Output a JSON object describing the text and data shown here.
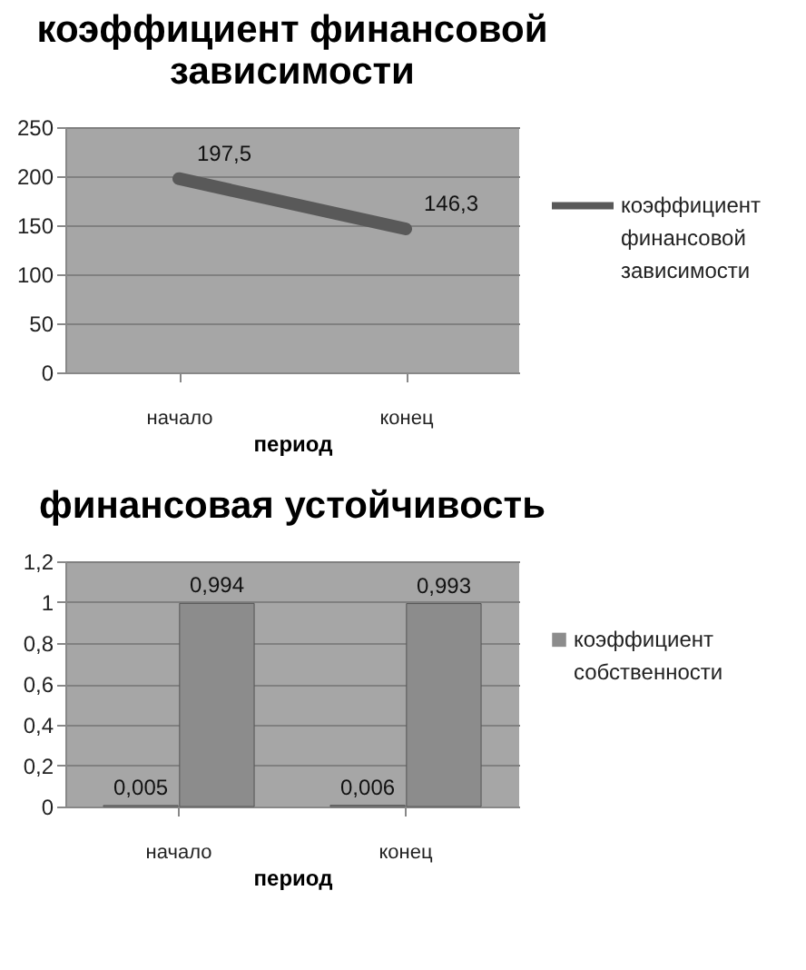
{
  "chart_data": [
    {
      "type": "line",
      "title": "коэффициент финансовой зависимости",
      "xlabel": "период",
      "categories": [
        "начало",
        "конец"
      ],
      "series": [
        {
          "name": "коэффициент финансовой зависимости",
          "color": "#595959",
          "values": [
            197.5,
            146.3
          ],
          "value_labels": [
            "197,5",
            "146,3"
          ]
        }
      ],
      "ylim": [
        0,
        250
      ],
      "yticks": [
        0,
        50,
        100,
        150,
        200,
        250
      ],
      "grid": "y",
      "legend": "right",
      "line_style": "solid"
    },
    {
      "type": "bar",
      "title": "финансовая устойчивость",
      "xlabel": "период",
      "categories": [
        "начало",
        "конец"
      ],
      "series": [
        {
          "color": "#8c8c8c",
          "values": [
            0.005,
            0.006
          ],
          "value_labels": [
            "0,005",
            "0,006"
          ]
        },
        {
          "name": "коэффициент собственности",
          "color": "#8c8c8c",
          "values": [
            0.994,
            0.993
          ],
          "value_labels": [
            "0,994",
            "0,993"
          ]
        }
      ],
      "ylim": [
        0,
        1.2
      ],
      "yticks": [
        0,
        {
          "value": 0.2,
          "label": "0,2"
        },
        {
          "value": 0.4,
          "label": "0,4"
        },
        {
          "value": 0.6,
          "label": "0,6"
        },
        {
          "value": 0.8,
          "label": "0,8"
        },
        1,
        {
          "value": 1.2,
          "label": "1,2"
        }
      ],
      "grid": "y",
      "legend": "right"
    }
  ]
}
